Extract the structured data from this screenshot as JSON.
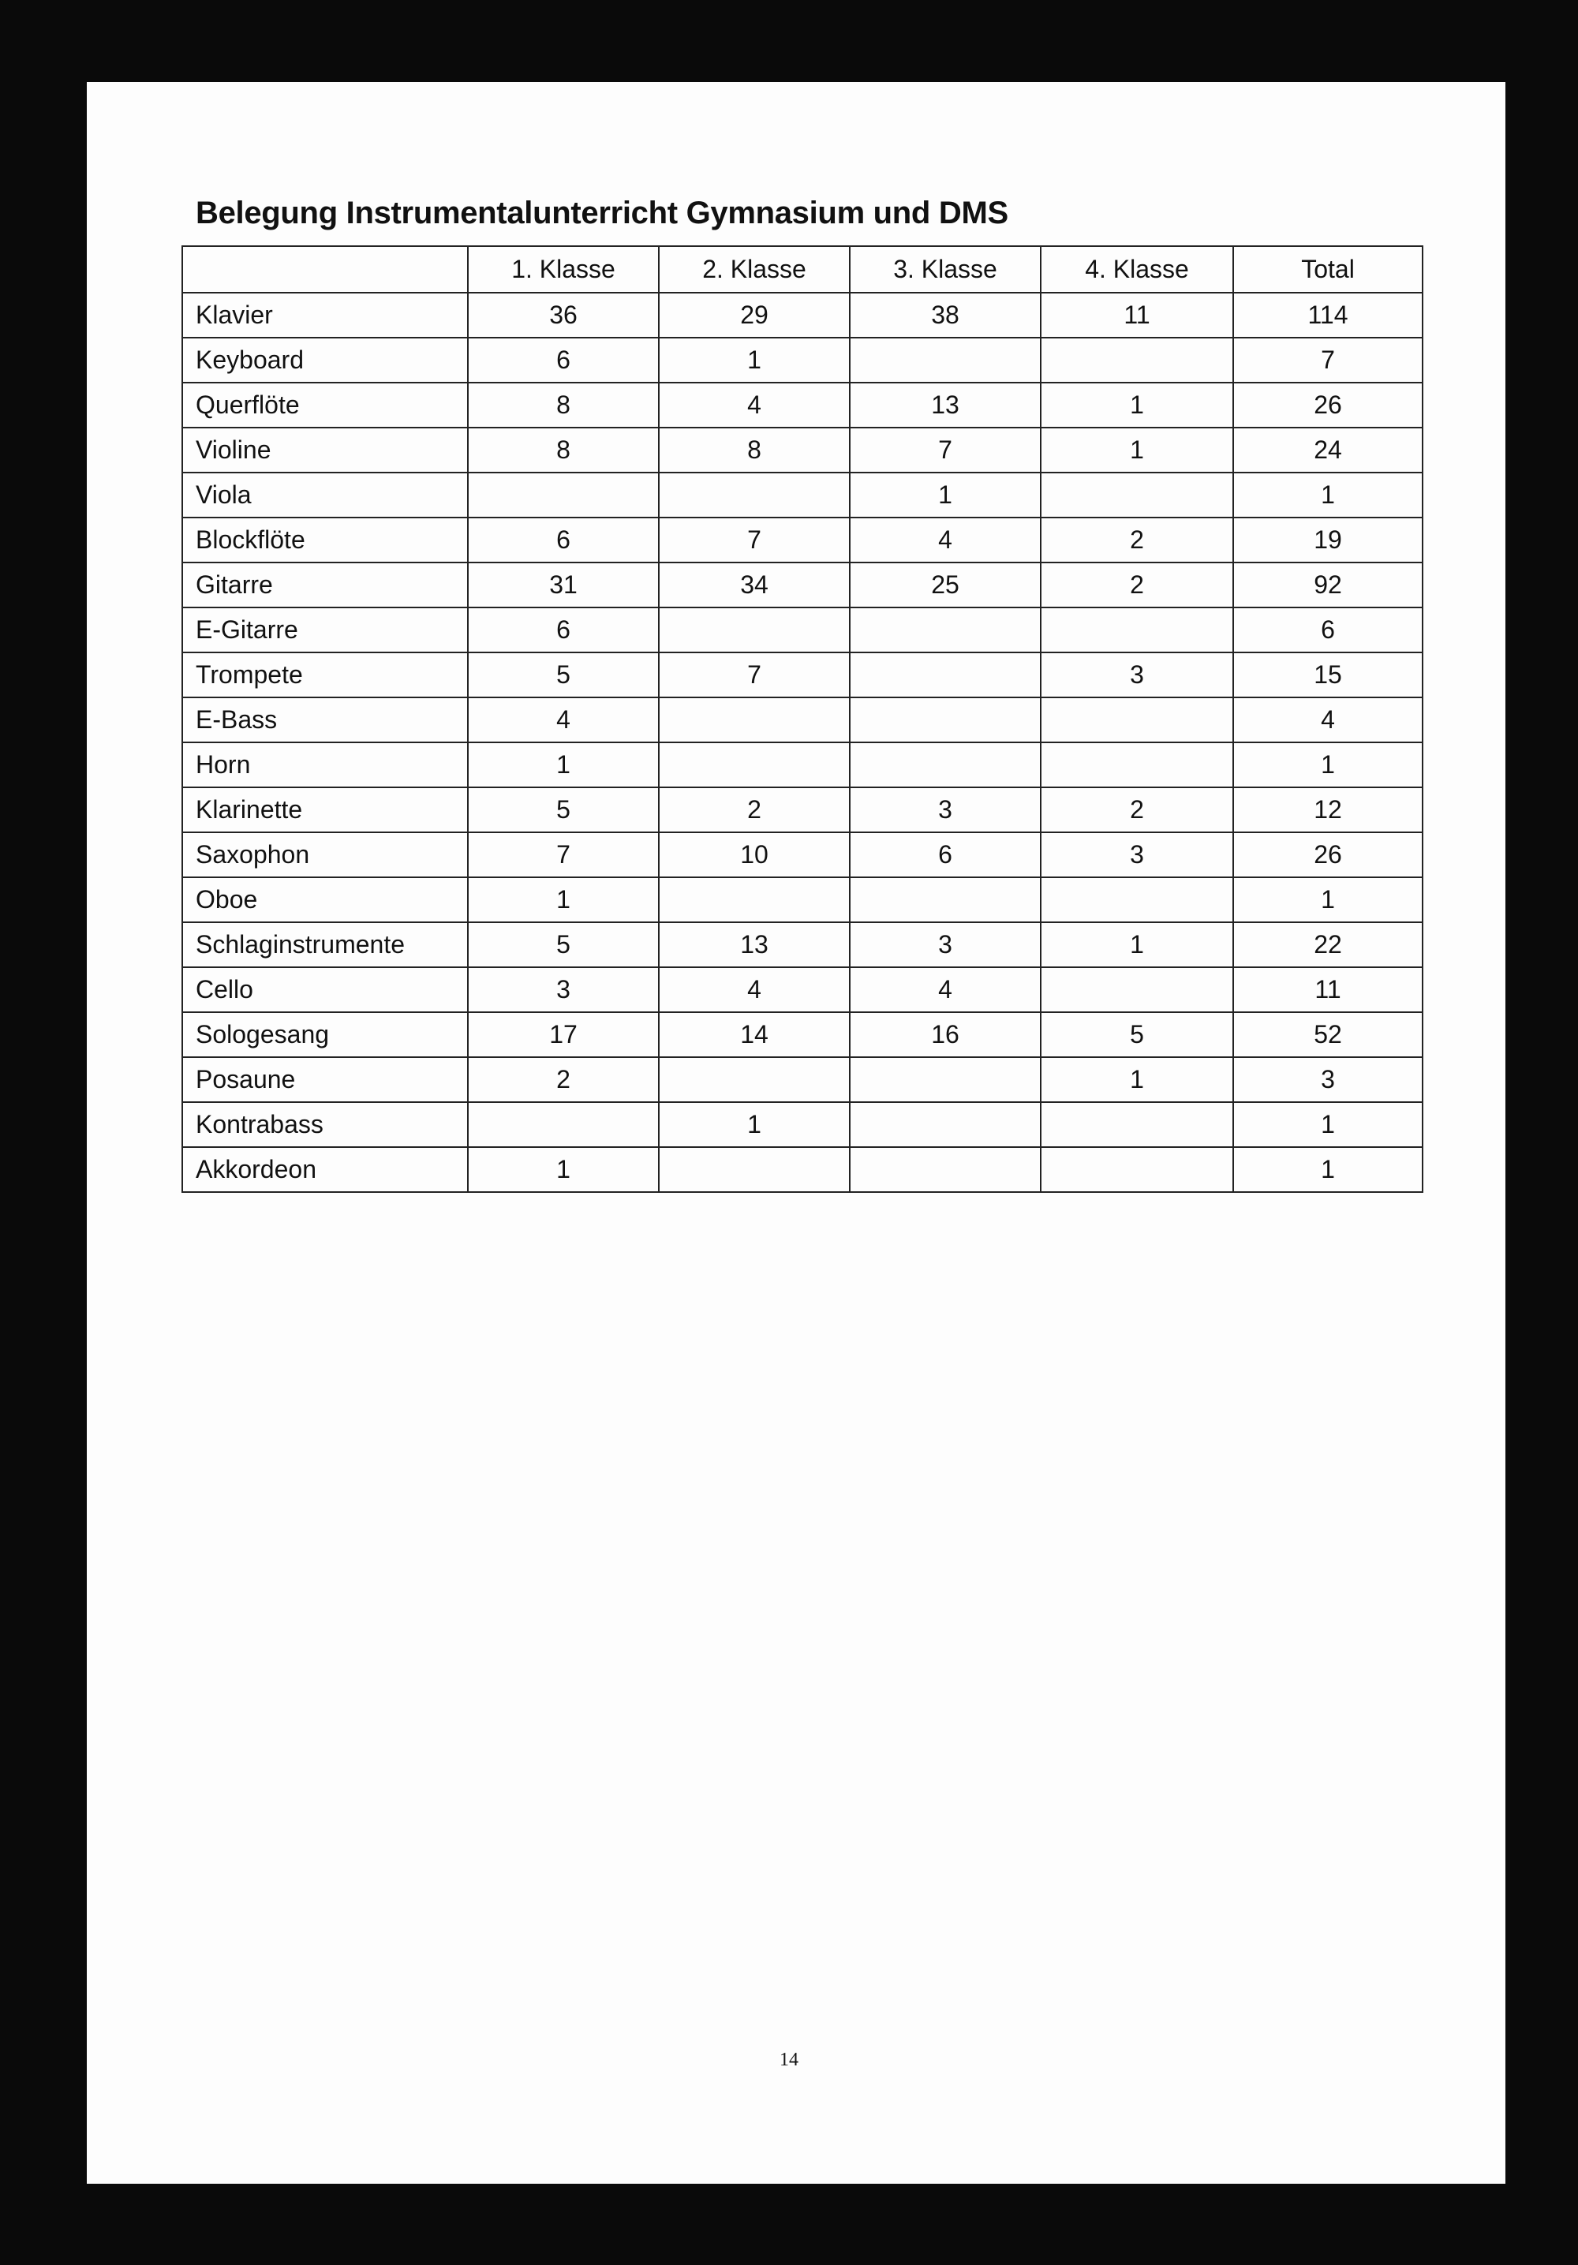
{
  "title": "Belegung Instrumentalunterricht Gymnasium und DMS",
  "table": {
    "headers": [
      "",
      "1. Klasse",
      "2. Klasse",
      "3. Klasse",
      "4. Klasse",
      "Total"
    ],
    "rows": [
      [
        "Klavier",
        "36",
        "29",
        "38",
        "11",
        "114"
      ],
      [
        "Keyboard",
        "6",
        "1",
        "",
        "",
        "7"
      ],
      [
        "Querflöte",
        "8",
        "4",
        "13",
        "1",
        "26"
      ],
      [
        "Violine",
        "8",
        "8",
        "7",
        "1",
        "24"
      ],
      [
        "Viola",
        "",
        "",
        "1",
        "",
        "1"
      ],
      [
        "Blockflöte",
        "6",
        "7",
        "4",
        "2",
        "19"
      ],
      [
        "Gitarre",
        "31",
        "34",
        "25",
        "2",
        "92"
      ],
      [
        "E-Gitarre",
        "6",
        "",
        "",
        "",
        "6"
      ],
      [
        "Trompete",
        "5",
        "7",
        "",
        "3",
        "15"
      ],
      [
        "E-Bass",
        "4",
        "",
        "",
        "",
        "4"
      ],
      [
        "Horn",
        "1",
        "",
        "",
        "",
        "1"
      ],
      [
        "Klarinette",
        "5",
        "2",
        "3",
        "2",
        "12"
      ],
      [
        "Saxophon",
        "7",
        "10",
        "6",
        "3",
        "26"
      ],
      [
        "Oboe",
        "1",
        "",
        "",
        "",
        "1"
      ],
      [
        "Schlaginstrumente",
        "5",
        "13",
        "3",
        "1",
        "22"
      ],
      [
        "Cello",
        "3",
        "4",
        "4",
        "",
        "11"
      ],
      [
        "Sologesang",
        "17",
        "14",
        "16",
        "5",
        "52"
      ],
      [
        "Posaune",
        "2",
        "",
        "",
        "1",
        "3"
      ],
      [
        "Kontrabass",
        "",
        "1",
        "",
        "",
        "1"
      ],
      [
        "Akkordeon",
        "1",
        "",
        "",
        "",
        "1"
      ]
    ]
  },
  "page_number": "14"
}
